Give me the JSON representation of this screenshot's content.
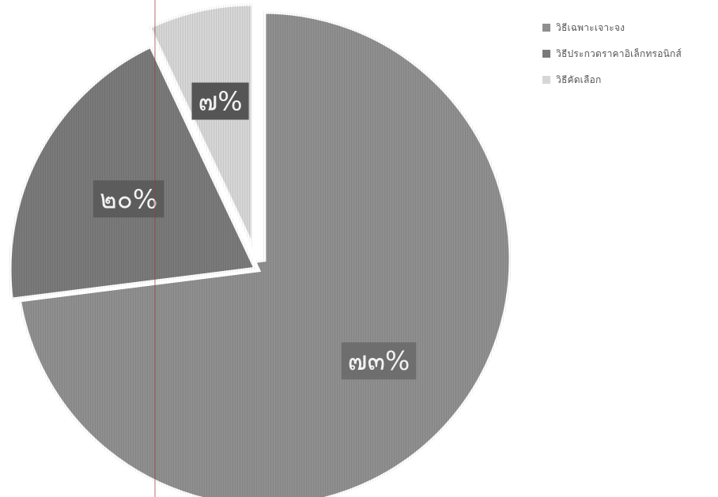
{
  "chart_data": {
    "type": "pie",
    "slices": [
      {
        "name": "วิธีเฉพาะเจาะจง",
        "value": 73,
        "label": "๗๓%",
        "color": "#8f8f8f",
        "label_bg": "#6e6e6e"
      },
      {
        "name": "วิธีประกวดราคาอิเล็กทรอนิกส์",
        "value": 20,
        "label": "๒๐%",
        "color": "#7a7a7a",
        "label_bg": "#5c5c5c"
      },
      {
        "name": "วิธีคัดเลือก",
        "value": 7,
        "label": "๗%",
        "color": "#d6d6d6",
        "label_bg": "#555555"
      }
    ],
    "legend_position": "top-right"
  }
}
